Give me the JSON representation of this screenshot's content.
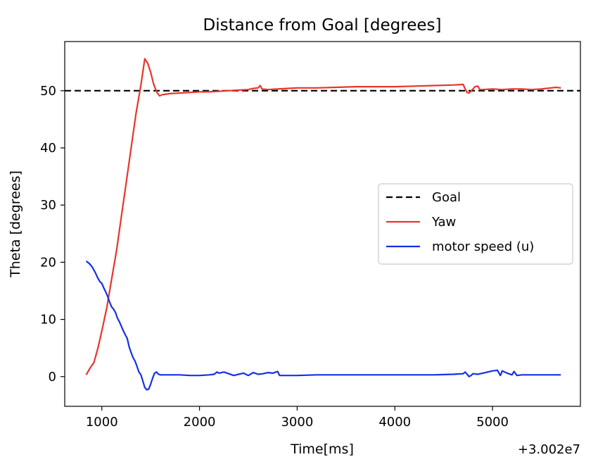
{
  "chart_data": {
    "type": "line",
    "title": "Distance from Goal [degrees]",
    "xlabel": "Time[ms]",
    "ylabel": "Theta [degrees]",
    "x_offset_label": "+3.002e7",
    "xlim": [
      620,
      5900
    ],
    "ylim": [
      -5.2,
      58.6
    ],
    "xticks": [
      1000,
      2000,
      3000,
      4000,
      5000
    ],
    "yticks": [
      0,
      10,
      20,
      30,
      40,
      50
    ],
    "grid": false,
    "legend_position": "center-right",
    "series": [
      {
        "name": "Goal",
        "color": "#000000",
        "style": "dashed",
        "x": [
          620,
          5900
        ],
        "y": [
          50,
          50
        ]
      },
      {
        "name": "Yaw",
        "color": "#e8352b",
        "style": "solid",
        "x": [
          840,
          880,
          920,
          960,
          1000,
          1050,
          1100,
          1150,
          1200,
          1250,
          1300,
          1350,
          1400,
          1440,
          1470,
          1500,
          1530,
          1560,
          1590,
          1620,
          1700,
          1800,
          1900,
          2000,
          2100,
          2200,
          2300,
          2400,
          2500,
          2550,
          2600,
          2620,
          2640,
          2700,
          2800,
          2900,
          3000,
          3200,
          3400,
          3600,
          3800,
          4000,
          4200,
          4400,
          4600,
          4700,
          4720,
          4740,
          4760,
          4800,
          4820,
          4850,
          4870,
          4900,
          5000,
          5100,
          5200,
          5300,
          5400,
          5500,
          5600,
          5650,
          5700
        ],
        "y": [
          0.3,
          1.5,
          2.5,
          5,
          8,
          12,
          17,
          22,
          28,
          34,
          40,
          46,
          51,
          55.6,
          54.8,
          53.2,
          51.2,
          49.8,
          49.1,
          49.3,
          49.5,
          49.6,
          49.7,
          49.8,
          49.8,
          49.9,
          50,
          50.1,
          50.2,
          50.4,
          50.5,
          50.9,
          50.3,
          50.2,
          50.3,
          50.4,
          50.5,
          50.5,
          50.6,
          50.7,
          50.7,
          50.7,
          50.8,
          50.9,
          51,
          51.1,
          50.3,
          49.7,
          49.6,
          50.3,
          50.7,
          50.8,
          50.2,
          50.2,
          50.3,
          50.2,
          50.3,
          50.3,
          50.2,
          50.3,
          50.5,
          50.6,
          50.5
        ]
      },
      {
        "name": "motor speed (u)",
        "color": "#1530e6",
        "style": "solid",
        "x": [
          840,
          870,
          900,
          930,
          960,
          980,
          1000,
          1020,
          1040,
          1060,
          1080,
          1100,
          1120,
          1140,
          1160,
          1180,
          1200,
          1220,
          1240,
          1260,
          1280,
          1300,
          1320,
          1340,
          1360,
          1380,
          1400,
          1420,
          1440,
          1460,
          1480,
          1500,
          1520,
          1540,
          1560,
          1580,
          1600,
          1700,
          1800,
          1900,
          2000,
          2100,
          2150,
          2180,
          2200,
          2250,
          2300,
          2350,
          2400,
          2450,
          2500,
          2550,
          2600,
          2650,
          2700,
          2750,
          2800,
          2820,
          2900,
          3000,
          3200,
          3400,
          3600,
          3800,
          4000,
          4200,
          4400,
          4600,
          4700,
          4720,
          4740,
          4760,
          4780,
          4800,
          4850,
          4900,
          4950,
          5000,
          5050,
          5080,
          5100,
          5150,
          5200,
          5220,
          5250,
          5300,
          5400,
          5500,
          5600,
          5700
        ],
        "y": [
          20.2,
          19.8,
          19.2,
          18.3,
          17.2,
          16.6,
          16.3,
          15.5,
          14.8,
          14,
          13,
          12.2,
          11.8,
          11.2,
          10.2,
          9.6,
          8.8,
          8,
          7.3,
          6.7,
          5.2,
          4.2,
          3.3,
          2.7,
          1.8,
          0.8,
          0.3,
          -0.8,
          -1.9,
          -2.3,
          -2.2,
          -1.3,
          -0.3,
          0.6,
          0.8,
          0.4,
          0.3,
          0.3,
          0.3,
          0.2,
          0.2,
          0.3,
          0.4,
          0.8,
          0.6,
          0.8,
          0.5,
          0.2,
          0.4,
          0.6,
          0.2,
          0.7,
          0.4,
          0.5,
          0.7,
          0.6,
          0.9,
          0.2,
          0.2,
          0.2,
          0.3,
          0.3,
          0.3,
          0.3,
          0.3,
          0.3,
          0.3,
          0.4,
          0.5,
          0.8,
          0.4,
          0,
          0.2,
          0.5,
          0.4,
          0.6,
          0.8,
          1.0,
          1.1,
          0.2,
          1.0,
          0.6,
          0.3,
          0.9,
          0.2,
          0.3,
          0.3,
          0.3,
          0.3,
          0.3
        ]
      }
    ]
  }
}
